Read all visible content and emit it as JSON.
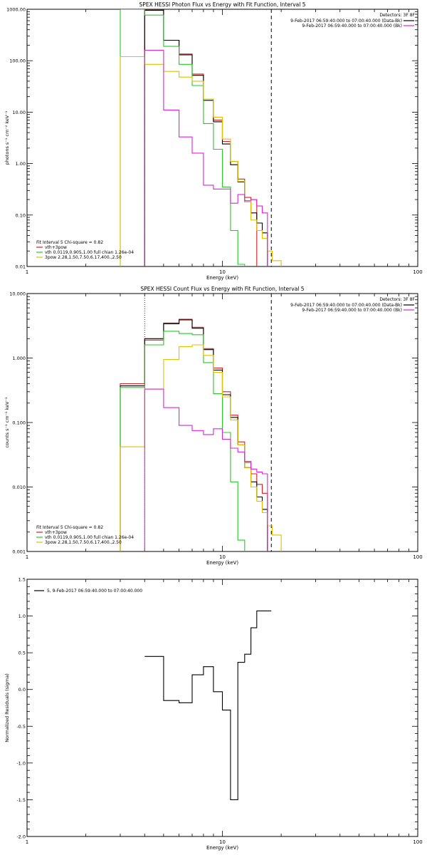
{
  "colors": {
    "data": "#000000",
    "total_fit": "#e01c1c",
    "vth": "#22cc22",
    "bpow": "#e0c000",
    "background": "#dd22dd"
  },
  "chart_data": [
    {
      "type": "line",
      "title": "SPEX HESSI Photon Flux vs Energy with Fit Function, Interval 5",
      "xlabel": "Energy (keV)",
      "ylabel": "photons s⁻¹ cm⁻² keV⁻¹",
      "xscale": "log",
      "yscale": "log",
      "xlim": [
        1,
        100
      ],
      "ylim": [
        0.01,
        1000
      ],
      "xticks": [
        "1",
        "10",
        "100"
      ],
      "yticks": [
        "0.01",
        "0.10",
        "1.00",
        "10.00",
        "100.00",
        "1000.00"
      ],
      "legend_title": "Detectors: 3F 8F",
      "legend": [
        {
          "label": "9-Feb-2017 06:59:40.000 to 07:00:40.000 (Data-Bk)",
          "color": "#000000"
        },
        {
          "label": "9-Feb-2017 06:59:40.000 to 07:00:40.000 (Bk)",
          "color": "#dd22dd"
        }
      ],
      "fit_info": [
        {
          "label": "Fit Interval 5   Chi-square = 0.82",
          "color": "#000000"
        },
        {
          "label": "vth+3pow",
          "color": "#e01c1c"
        },
        {
          "label": "vth 0.0119,0.905,1.00  full chian 1.26e-04",
          "color": "#22cc22"
        },
        {
          "label": "3pow 2.28,1.50,7.50,6.17,400.,2.50",
          "color": "#e0c000"
        }
      ],
      "dotted_line_x": 4,
      "dashed_line_x": 17.8,
      "edges": [
        3,
        4,
        5,
        6,
        7,
        8,
        9,
        10,
        11,
        12,
        13,
        14,
        15,
        16,
        17,
        18,
        20
      ],
      "series": [
        {
          "name": "vth+3pow",
          "color": "#e01c1c",
          "values": [
            null,
            950,
            250,
            135,
            55,
            18,
            7,
            2.7,
            1.1,
            0.5,
            0.22,
            0.2,
            null,
            null,
            null,
            null
          ]
        },
        {
          "name": "Data-Bk",
          "color": "#000000",
          "values": [
            null,
            960,
            250,
            130,
            52,
            17,
            6.5,
            2.4,
            0.95,
            0.44,
            0.18,
            0.11,
            0.07,
            0.045,
            null,
            null
          ]
        },
        {
          "name": "vth",
          "color": "#22cc22",
          "values": [
            1000,
            770,
            190,
            85,
            33,
            6,
            1.9,
            0.35,
            0.05,
            0.011,
            null,
            null,
            null,
            null,
            null,
            null
          ]
        },
        {
          "name": "3pow",
          "color": "#e0c000",
          "values": [
            120,
            85,
            62,
            48,
            40,
            18,
            8,
            3,
            1.1,
            0.45,
            0.18,
            0.08,
            0.05,
            0.035,
            0.02,
            0.013
          ]
        },
        {
          "name": "Bk",
          "color": "#dd22dd",
          "values": [
            null,
            160,
            11,
            3.3,
            1.6,
            0.38,
            0.32,
            0.32,
            0.17,
            0.25,
            0.19,
            0.2,
            0.15,
            0.11,
            null,
            null
          ]
        }
      ]
    },
    {
      "type": "line",
      "title": "SPEX HESSI Count Flux vs Energy with Fit Function, Interval 5",
      "xlabel": "Energy (keV)",
      "ylabel": "counts s⁻¹ cm⁻² keV⁻¹",
      "xscale": "log",
      "yscale": "log",
      "xlim": [
        1,
        100
      ],
      "ylim": [
        0.001,
        10
      ],
      "xticks": [
        "1",
        "10",
        "100"
      ],
      "yticks": [
        "0.001",
        "0.010",
        "0.100",
        "1.000",
        "10.000"
      ],
      "legend_title": "Detectors: 3F 8F",
      "legend": [
        {
          "label": "9-Feb-2017 06:59:40.000 to 07:00:40.000 (Data-Bk)",
          "color": "#000000"
        },
        {
          "label": "9-Feb-2017 06:59:40.000 to 07:00:40.000 (Bk)",
          "color": "#dd22dd"
        }
      ],
      "fit_info": [
        {
          "label": "Fit Interval 5   Chi-square = 0.82",
          "color": "#000000"
        },
        {
          "label": "vth+3pow",
          "color": "#e01c1c"
        },
        {
          "label": "vth 0.0119,0.905,1.00  full chian 1.26e-04",
          "color": "#22cc22"
        },
        {
          "label": "3pow 2.28,1.50,7.50,6.17,400.,2.50",
          "color": "#e0c000"
        }
      ],
      "dotted_line_x": 4,
      "dashed_line_x": 17.8,
      "edges": [
        3,
        4,
        5,
        6,
        7,
        8,
        9,
        10,
        11,
        12,
        13,
        14,
        15,
        16,
        17,
        18,
        20
      ],
      "series": [
        {
          "name": "vth+3pow",
          "color": "#e01c1c",
          "values": [
            0.4,
            1.9,
            3.5,
            4.0,
            3.0,
            1.4,
            0.7,
            0.3,
            0.13,
            0.05,
            0.024,
            0.016,
            0.011,
            0.008,
            null,
            null
          ]
        },
        {
          "name": "Data-Bk",
          "color": "#000000",
          "values": [
            0.37,
            2.0,
            3.4,
            3.9,
            2.9,
            1.35,
            0.65,
            0.27,
            0.12,
            0.045,
            0.02,
            0.012,
            0.007,
            0.0045,
            null,
            null
          ]
        },
        {
          "name": "vth",
          "color": "#22cc22",
          "values": [
            0.35,
            1.6,
            2.6,
            2.4,
            2.3,
            0.85,
            0.28,
            0.07,
            0.012,
            0.0015,
            null,
            null,
            null,
            null,
            null,
            null
          ]
        },
        {
          "name": "3pow",
          "color": "#e0c000",
          "values": [
            0.042,
            0.33,
            0.95,
            1.5,
            1.6,
            1.1,
            0.6,
            0.25,
            0.11,
            0.045,
            0.02,
            0.01,
            0.006,
            0.004,
            0.0025,
            0.0018
          ]
        },
        {
          "name": "Bk",
          "color": "#dd22dd",
          "values": [
            null,
            0.33,
            0.17,
            0.09,
            0.075,
            0.065,
            0.08,
            0.055,
            0.04,
            0.035,
            0.025,
            0.019,
            0.017,
            0.016,
            null,
            null
          ]
        }
      ]
    },
    {
      "type": "line",
      "title": "",
      "xlabel": "Energy (keV)",
      "ylabel": "Normalized Residuals (sigma)",
      "xscale": "log",
      "yscale": "linear",
      "xlim": [
        1,
        100
      ],
      "ylim": [
        -2.0,
        1.5
      ],
      "xticks": [
        "1",
        "10",
        "100"
      ],
      "yticks": [
        "-2.0",
        "-1.5",
        "-1.0",
        "-0.5",
        "0.0",
        "0.5",
        "1.0",
        "1.5"
      ],
      "legend": [
        {
          "label": "5,  9-Feb-2017 06:59:40.000 to 07:00:40.000",
          "color": "#000000"
        }
      ],
      "edges": [
        4,
        5,
        6,
        7,
        8,
        9,
        10,
        11,
        12,
        13,
        14,
        15,
        16,
        17.8
      ],
      "series": [
        {
          "name": "",
          "color": "#000000",
          "values": [
            0.45,
            -0.15,
            -0.18,
            0.2,
            0.31,
            -0.03,
            -0.28,
            -1.5,
            0.37,
            0.48,
            0.84,
            1.07,
            1.07
          ]
        }
      ]
    }
  ]
}
